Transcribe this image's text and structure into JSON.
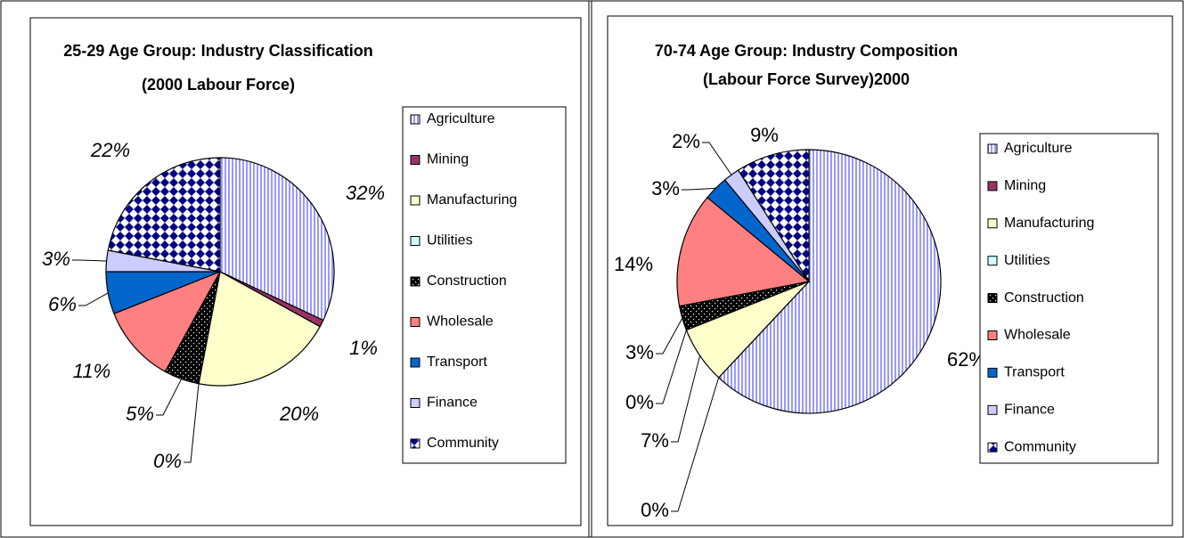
{
  "chart_data": [
    {
      "type": "pie",
      "title": [
        "25-29 Age Group: Industry Classification",
        "(2000 Labour Force)"
      ],
      "categories": [
        "Agriculture",
        "Mining",
        "Manufacturing",
        "Utilities",
        "Construction",
        "Wholesale",
        "Transport",
        "Finance",
        "Community"
      ],
      "values": [
        32,
        1,
        20,
        0,
        5,
        11,
        6,
        3,
        22
      ],
      "value_labels": [
        "32%",
        "1%",
        "20%",
        "0%",
        "5%",
        "11%",
        "6%",
        "3%",
        "22%"
      ],
      "colors": [
        "#9999ff",
        "#993366",
        "#ffffcc",
        "#ccffff",
        "#000000",
        "#ff8080",
        "#0066cc",
        "#ccccff",
        "#000080"
      ],
      "patterns": [
        "stripes",
        "solid",
        "solid",
        "solid",
        "dots",
        "solid",
        "solid",
        "solid",
        "checker"
      ],
      "legend": "right"
    },
    {
      "type": "pie",
      "title": [
        "70-74 Age Group: Industry Composition",
        "(Labour Force Survey)2000"
      ],
      "categories": [
        "Agriculture",
        "Mining",
        "Manufacturing",
        "Utilities",
        "Construction",
        "Wholesale",
        "Transport",
        "Finance",
        "Community"
      ],
      "values": [
        62,
        0,
        7,
        0,
        3,
        14,
        3,
        2,
        9
      ],
      "value_labels": [
        "62%",
        "0%",
        "7%",
        "0%",
        "3%",
        "14%",
        "3%",
        "2%",
        "9%"
      ],
      "colors": [
        "#9999ff",
        "#993366",
        "#ffffcc",
        "#ccffff",
        "#000000",
        "#ff8080",
        "#0066cc",
        "#ccccff",
        "#000080"
      ],
      "patterns": [
        "stripes",
        "solid",
        "solid",
        "solid",
        "dots",
        "solid",
        "solid",
        "solid",
        "checker"
      ],
      "legend": "right"
    }
  ]
}
